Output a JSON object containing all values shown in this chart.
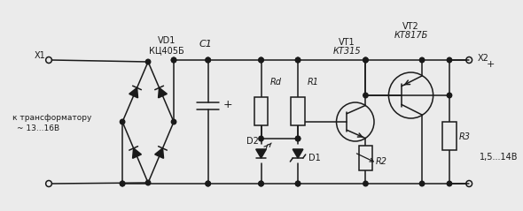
{
  "bg": "#ebebeb",
  "lc": "#1a1a1a",
  "lw": 1.1,
  "dot_r": 2.8,
  "labels": {
    "X1": "X1",
    "X2": "X2",
    "plus_x2": "+",
    "VD1": "VD1",
    "KTs": "КЦ405Б",
    "C1": "C1",
    "Rd": "Rd",
    "R1": "R1",
    "R2": "R2",
    "R3": "R3",
    "D1": "D1",
    "D2": "D2",
    "VT1": "VT1",
    "KT315": "КТ315",
    "VT2": "VT2",
    "KT817B": "КТ817Б",
    "trans": "к трансформатору",
    "volt_in": "~ 13...16В",
    "volt_out": "1,5...14В"
  }
}
